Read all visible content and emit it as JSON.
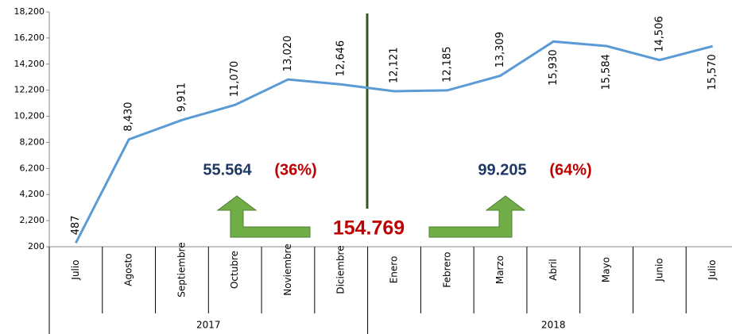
{
  "chart_data": {
    "type": "line",
    "category_groups": [
      {
        "label": "2017",
        "categories": [
          "Julio",
          "Agosto",
          "Septiembre",
          "Octubre",
          "Noviembre",
          "Diciembre"
        ]
      },
      {
        "label": "2018",
        "categories": [
          "Enero",
          "Febrero",
          "Marzo",
          "Abril",
          "Mayo",
          "Junio",
          "Julio"
        ]
      }
    ],
    "values": [
      487,
      8430,
      9911,
      11070,
      13020,
      12646,
      12121,
      12185,
      13309,
      15930,
      15584,
      14506,
      15570
    ],
    "value_labels": [
      "487",
      "8,430",
      "9,911",
      "11,070",
      "13,020",
      "12,646",
      "12,121",
      "12,185",
      "13,309",
      "15,930",
      "15,584",
      "14,506",
      "15,570"
    ],
    "color": "#5b9bd5",
    "ylim": [
      200,
      18200
    ],
    "yticks": [
      200,
      {
        "value": 2200,
        "label": "2,200"
      },
      {
        "value": 4200,
        "label": "4,200"
      },
      {
        "value": 6200,
        "label": "6,200"
      },
      {
        "value": 8200,
        "label": "8,200"
      },
      {
        "value": 10200,
        "label": "10,200"
      },
      {
        "value": 12200,
        "label": "12,200"
      },
      {
        "value": 14200,
        "label": "14,200"
      },
      {
        "value": 16200,
        "label": "16,200"
      },
      {
        "value": 18200,
        "label": "18,200"
      }
    ],
    "annotations": {
      "first_total": "55.564",
      "first_share": "(36%)",
      "second_total": "99.205",
      "second_share": "(64%)",
      "grand_total": "154.769"
    }
  }
}
